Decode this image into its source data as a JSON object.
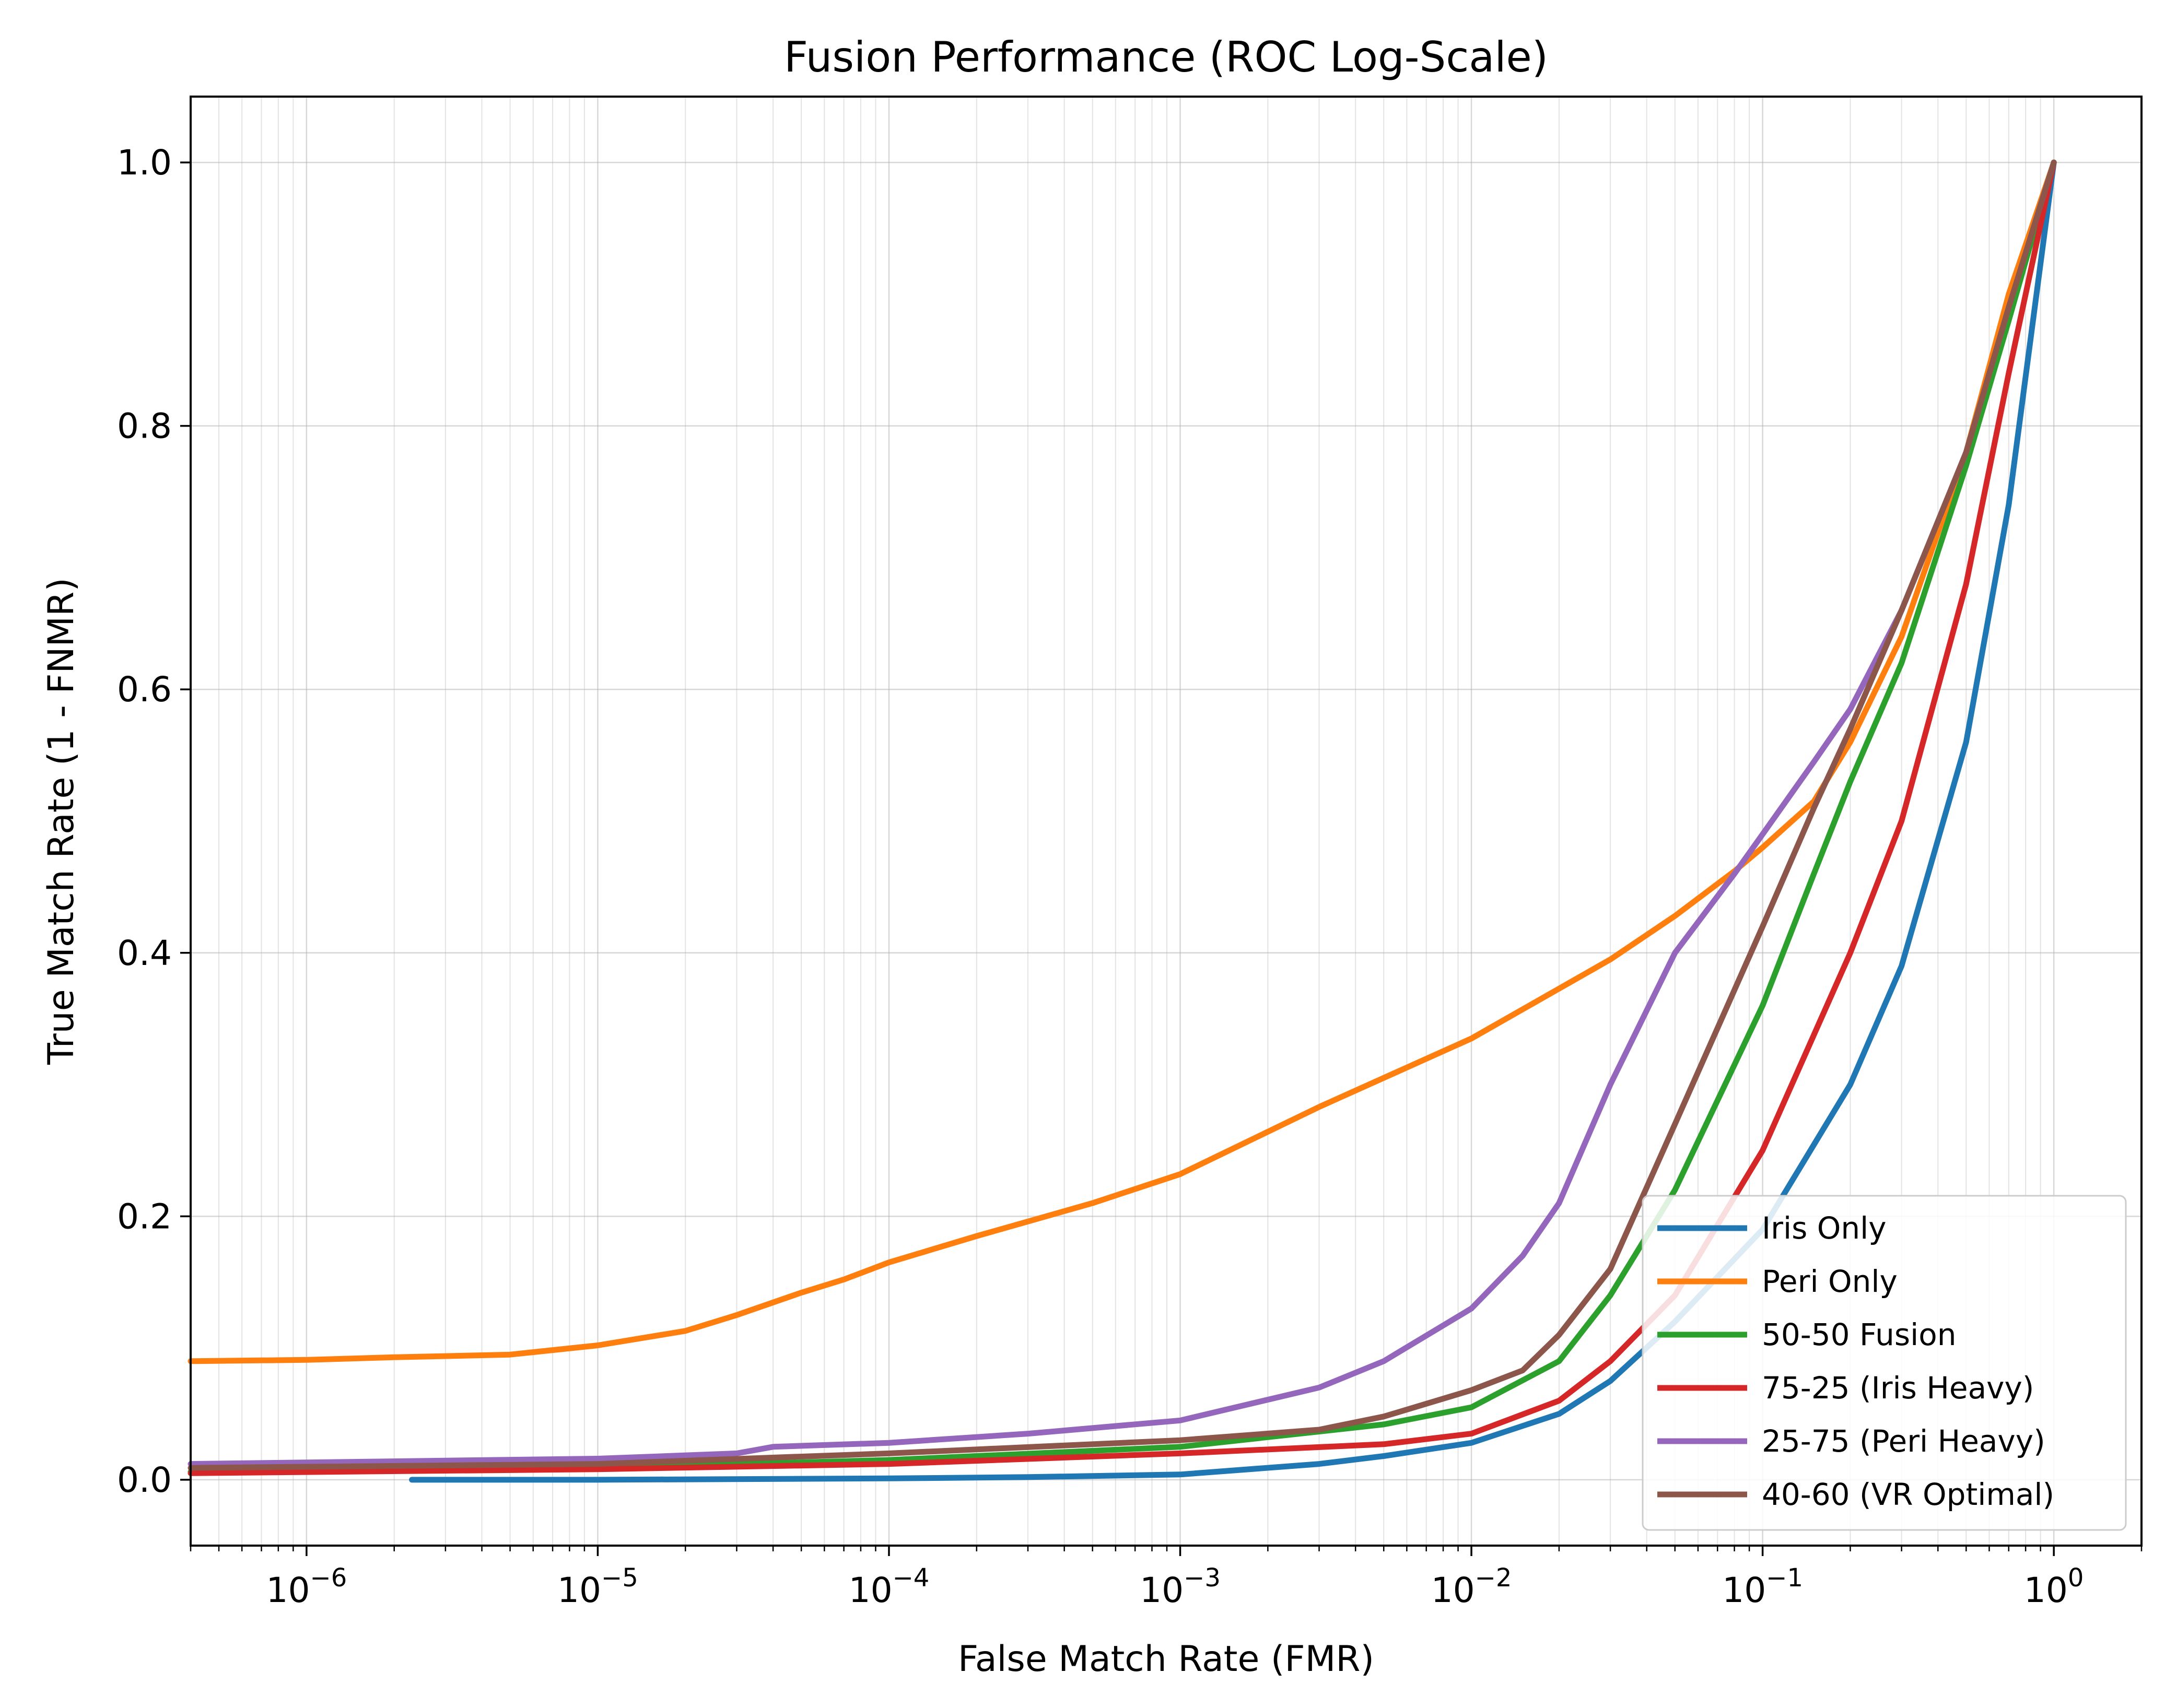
{
  "chart_data": {
    "type": "line",
    "title": "Fusion Performance (ROC Log-Scale)",
    "xlabel": "False Match Rate (FMR)",
    "ylabel": "True Match Rate (1 - FNMR)",
    "x_scale": "log",
    "xlim": [
      4e-07,
      2
    ],
    "ylim": [
      -0.05,
      1.05
    ],
    "x_ticks": [
      {
        "value": 1e-06,
        "base": "10",
        "exp": "−6"
      },
      {
        "value": 1e-05,
        "base": "10",
        "exp": "−5"
      },
      {
        "value": 0.0001,
        "base": "10",
        "exp": "−4"
      },
      {
        "value": 0.001,
        "base": "10",
        "exp": "−3"
      },
      {
        "value": 0.01,
        "base": "10",
        "exp": "−2"
      },
      {
        "value": 0.1,
        "base": "10",
        "exp": "−1"
      },
      {
        "value": 1,
        "base": "10",
        "exp": "0"
      }
    ],
    "y_ticks": [
      {
        "value": 0.0,
        "label": "0.0"
      },
      {
        "value": 0.2,
        "label": "0.2"
      },
      {
        "value": 0.4,
        "label": "0.4"
      },
      {
        "value": 0.6,
        "label": "0.6"
      },
      {
        "value": 0.8,
        "label": "0.8"
      },
      {
        "value": 1.0,
        "label": "1.0"
      }
    ],
    "grid": true,
    "legend_position": "lower-right",
    "series": [
      {
        "name": "Iris Only",
        "color": "#1f77b4",
        "x": [
          2.3e-06,
          1e-05,
          0.0001,
          0.0003,
          0.001,
          0.003,
          0.005,
          0.01,
          0.02,
          0.03,
          0.05,
          0.1,
          0.2,
          0.3,
          0.5,
          0.7,
          1.0
        ],
        "y": [
          0.0,
          0.0,
          0.001,
          0.002,
          0.004,
          0.012,
          0.018,
          0.028,
          0.05,
          0.075,
          0.12,
          0.19,
          0.3,
          0.39,
          0.56,
          0.74,
          1.0
        ]
      },
      {
        "name": "Peri Only",
        "color": "#ff7f0e",
        "x": [
          4e-07,
          1e-06,
          2e-06,
          5e-06,
          1e-05,
          2e-05,
          3e-05,
          5e-05,
          7e-05,
          0.0001,
          0.0002,
          0.0005,
          0.001,
          0.003,
          0.01,
          0.03,
          0.05,
          0.08,
          0.1,
          0.15,
          0.2,
          0.3,
          0.5,
          0.7,
          1.0
        ],
        "y": [
          0.09,
          0.091,
          0.093,
          0.095,
          0.102,
          0.113,
          0.125,
          0.142,
          0.152,
          0.165,
          0.185,
          0.21,
          0.232,
          0.283,
          0.335,
          0.395,
          0.428,
          0.462,
          0.48,
          0.515,
          0.56,
          0.64,
          0.78,
          0.9,
          1.0
        ]
      },
      {
        "name": "50-50 Fusion",
        "color": "#2ca02c",
        "x": [
          4e-07,
          1e-05,
          0.0001,
          0.001,
          0.005,
          0.01,
          0.02,
          0.03,
          0.05,
          0.1,
          0.15,
          0.2,
          0.3,
          0.5,
          0.7,
          1.0
        ],
        "y": [
          0.006,
          0.009,
          0.015,
          0.025,
          0.042,
          0.055,
          0.09,
          0.14,
          0.22,
          0.36,
          0.46,
          0.53,
          0.62,
          0.77,
          0.88,
          1.0
        ]
      },
      {
        "name": "75-25 (Iris Heavy)",
        "color": "#d62728",
        "x": [
          4e-07,
          1e-05,
          0.0001,
          0.001,
          0.005,
          0.01,
          0.02,
          0.03,
          0.05,
          0.1,
          0.2,
          0.3,
          0.5,
          0.7,
          1.0
        ],
        "y": [
          0.005,
          0.008,
          0.012,
          0.02,
          0.027,
          0.035,
          0.06,
          0.09,
          0.14,
          0.25,
          0.4,
          0.5,
          0.68,
          0.84,
          1.0
        ]
      },
      {
        "name": "25-75 (Peri Heavy)",
        "color": "#9467bd",
        "x": [
          4e-07,
          1e-05,
          3e-05,
          4e-05,
          0.0001,
          0.0003,
          0.001,
          0.003,
          0.005,
          0.01,
          0.015,
          0.02,
          0.03,
          0.05,
          0.08,
          0.1,
          0.15,
          0.2,
          0.3,
          0.5,
          0.7,
          1.0
        ],
        "y": [
          0.012,
          0.016,
          0.02,
          0.025,
          0.028,
          0.035,
          0.045,
          0.07,
          0.09,
          0.13,
          0.17,
          0.21,
          0.3,
          0.4,
          0.46,
          0.49,
          0.545,
          0.585,
          0.66,
          0.78,
          0.89,
          1.0
        ]
      },
      {
        "name": "40-60 (VR Optimal)",
        "color": "#8c564b",
        "x": [
          4e-07,
          1e-05,
          0.0001,
          0.001,
          0.003,
          0.005,
          0.01,
          0.015,
          0.02,
          0.03,
          0.05,
          0.1,
          0.15,
          0.2,
          0.3,
          0.5,
          0.7,
          1.0
        ],
        "y": [
          0.009,
          0.012,
          0.02,
          0.03,
          0.038,
          0.048,
          0.068,
          0.083,
          0.11,
          0.16,
          0.27,
          0.42,
          0.51,
          0.57,
          0.66,
          0.78,
          0.89,
          1.0
        ]
      }
    ]
  }
}
